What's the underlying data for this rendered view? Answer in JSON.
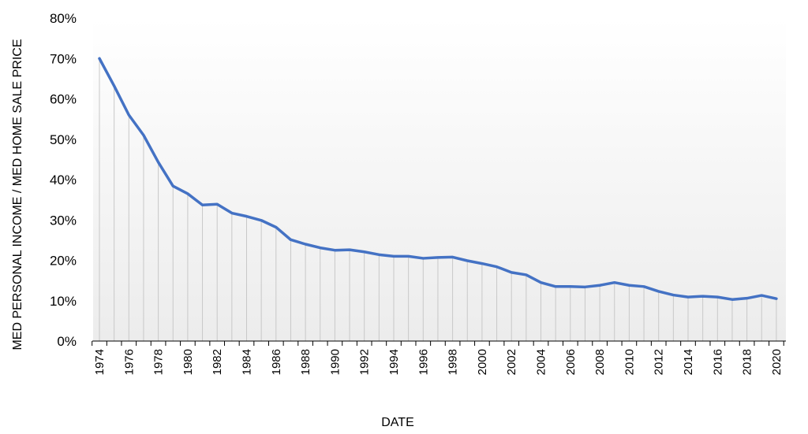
{
  "chart_data": {
    "type": "line",
    "title": "",
    "xlabel": "DATE",
    "ylabel": "MED PERSONAL INCOME / MED HOME SALE PRICE",
    "ylim": [
      0,
      80
    ],
    "yticks": [
      "0%",
      "10%",
      "20%",
      "30%",
      "40%",
      "50%",
      "60%",
      "70%",
      "80%"
    ],
    "xticks": [
      "1974",
      "1976",
      "1978",
      "1980",
      "1982",
      "1984",
      "1986",
      "1988",
      "1990",
      "1992",
      "1994",
      "1996",
      "1998",
      "2000",
      "2002",
      "2004",
      "2006",
      "2008",
      "2010",
      "2012",
      "2014",
      "2016",
      "2018",
      "2020"
    ],
    "grid": "vertical drop lines from each data point",
    "line_color": "#4472C4",
    "series": [
      {
        "x": [
          1974,
          1975,
          1976,
          1977,
          1978,
          1979,
          1980,
          1981,
          1982,
          1983,
          1984,
          1985,
          1986,
          1987,
          1988,
          1989,
          1990,
          1991,
          1992,
          1993,
          1994,
          1995,
          1996,
          1997,
          1998,
          1999,
          2000,
          2001,
          2002,
          2003,
          2004,
          2005,
          2006,
          2007,
          2008,
          2009,
          2010,
          2011,
          2012,
          2013,
          2014,
          2015,
          2016,
          2017,
          2018,
          2019,
          2020
        ],
        "values": [
          70.0,
          63.2,
          56.0,
          51.0,
          44.3,
          38.4,
          36.5,
          33.7,
          33.9,
          31.7,
          30.9,
          29.9,
          28.2,
          25.1,
          24.0,
          23.1,
          22.5,
          22.6,
          22.1,
          21.4,
          21.0,
          21.0,
          20.5,
          20.7,
          20.8,
          19.9,
          19.2,
          18.4,
          17.0,
          16.4,
          14.5,
          13.5,
          13.5,
          13.4,
          13.8,
          14.5,
          13.8,
          13.5,
          12.3,
          11.4,
          10.9,
          11.1,
          10.9,
          10.3,
          10.6,
          11.3,
          10.5
        ]
      }
    ]
  }
}
